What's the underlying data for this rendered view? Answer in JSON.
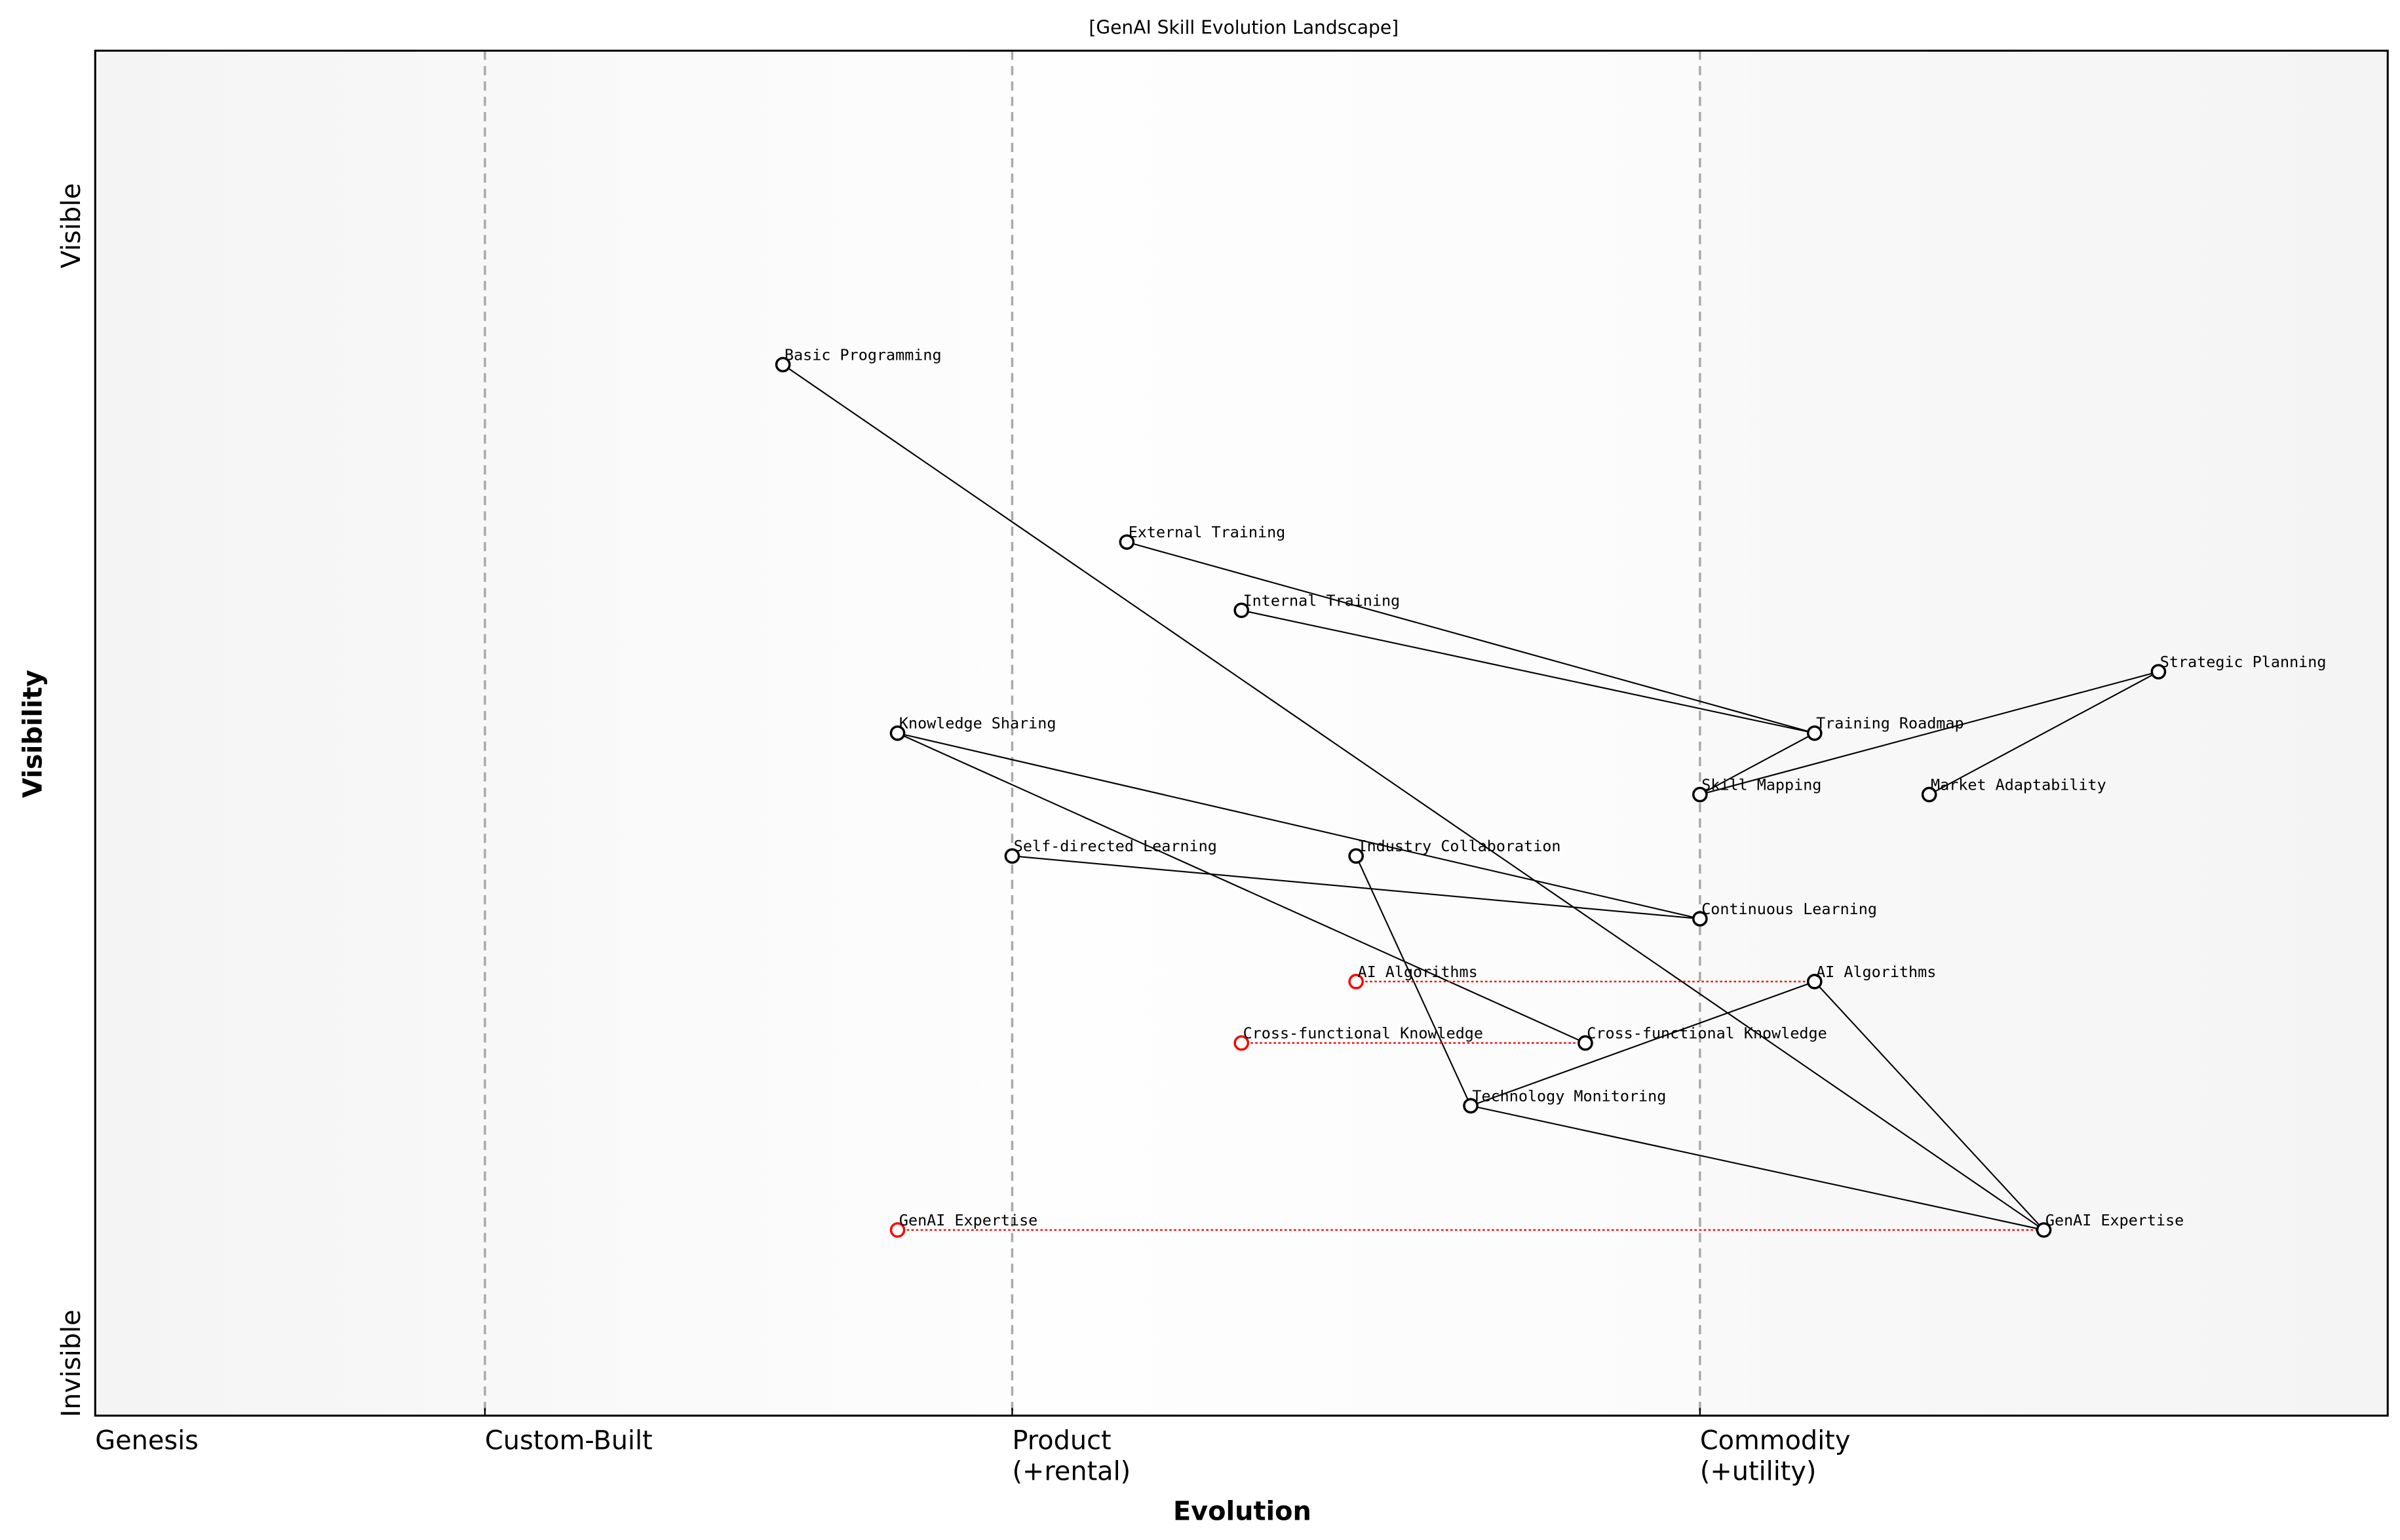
{
  "title": "[GenAI Skill Evolution Landscape]",
  "x_axis": {
    "label": "Evolution",
    "stages": [
      {
        "label": [
          "Genesis"
        ],
        "at": 0.0
      },
      {
        "label": [
          "Custom-Built"
        ],
        "at": 0.17
      },
      {
        "label": [
          "Product",
          "(+rental)"
        ],
        "at": 0.4
      },
      {
        "label": [
          "Commodity",
          "(+utility)"
        ],
        "at": 0.7
      }
    ]
  },
  "y_axis": {
    "label": "Visibility",
    "top_label": "Visible",
    "bottom_label": "Invisible"
  },
  "colors": {
    "component": "#000000",
    "evolution": "#ff0000",
    "stage_line": "#aaaaaa"
  },
  "components": [
    {
      "name": "Basic Programming",
      "evolution": 0.3,
      "visibility": 0.77
    },
    {
      "name": "External Training",
      "evolution": 0.45,
      "visibility": 0.64
    },
    {
      "name": "Internal Training",
      "evolution": 0.5,
      "visibility": 0.59
    },
    {
      "name": "Strategic Planning",
      "evolution": 0.9,
      "visibility": 0.545
    },
    {
      "name": "Training Roadmap",
      "evolution": 0.75,
      "visibility": 0.5
    },
    {
      "name": "Knowledge Sharing",
      "evolution": 0.35,
      "visibility": 0.5
    },
    {
      "name": "Skill Mapping",
      "evolution": 0.7,
      "visibility": 0.455
    },
    {
      "name": "Market Adaptability",
      "evolution": 0.8,
      "visibility": 0.455
    },
    {
      "name": "Self-directed Learning",
      "evolution": 0.4,
      "visibility": 0.41
    },
    {
      "name": "Industry Collaboration",
      "evolution": 0.55,
      "visibility": 0.41
    },
    {
      "name": "Continuous Learning",
      "evolution": 0.7,
      "visibility": 0.364
    },
    {
      "name": "AI Algorithms",
      "evolution": 0.75,
      "visibility": 0.318
    },
    {
      "name": "Cross-functional Knowledge",
      "evolution": 0.65,
      "visibility": 0.273
    },
    {
      "name": "Technology Monitoring",
      "evolution": 0.6,
      "visibility": 0.227
    },
    {
      "name": "GenAI Expertise",
      "evolution": 0.85,
      "visibility": 0.136
    }
  ],
  "evolutions": [
    {
      "name": "AI Algorithms",
      "from": 0.55,
      "to": 0.75,
      "visibility": 0.318
    },
    {
      "name": "Cross-functional Knowledge",
      "from": 0.5,
      "to": 0.65,
      "visibility": 0.273
    },
    {
      "name": "GenAI Expertise",
      "from": 0.35,
      "to": 0.85,
      "visibility": 0.136
    }
  ],
  "links": [
    [
      "Basic Programming",
      "GenAI Expertise"
    ],
    [
      "External Training",
      "Training Roadmap"
    ],
    [
      "Internal Training",
      "Training Roadmap"
    ],
    [
      "Training Roadmap",
      "Skill Mapping"
    ],
    [
      "Skill Mapping",
      "Strategic Planning"
    ],
    [
      "Strategic Planning",
      "Market Adaptability"
    ],
    [
      "Knowledge Sharing",
      "Continuous Learning"
    ],
    [
      "Knowledge Sharing",
      "Cross-functional Knowledge"
    ],
    [
      "Self-directed Learning",
      "Continuous Learning"
    ],
    [
      "Industry Collaboration",
      "Technology Monitoring"
    ],
    [
      "Technology Monitoring",
      "AI Algorithms"
    ],
    [
      "Technology Monitoring",
      "GenAI Expertise"
    ],
    [
      "AI Algorithms",
      "GenAI Expertise"
    ]
  ]
}
